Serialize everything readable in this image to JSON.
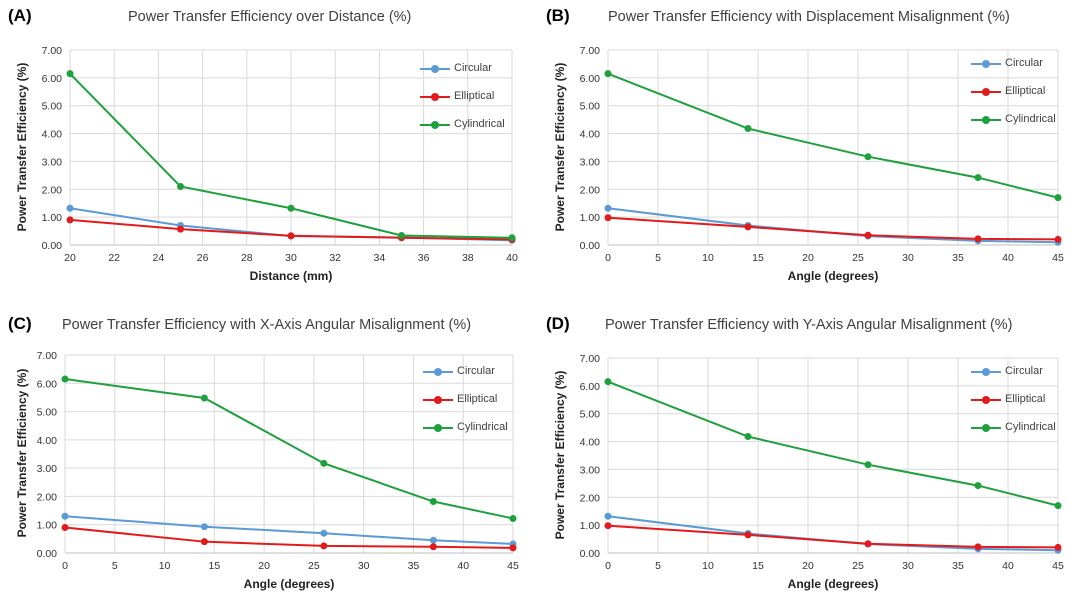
{
  "chart_data": [
    {
      "type": "line",
      "panel_label": "(A)",
      "title": "Power Transfer Efficiency over Distance (%)",
      "xlabel": "Distance (mm)",
      "ylabel": "Power Transfer Efficiency (%)",
      "x": [
        20,
        25,
        30,
        35,
        40
      ],
      "xlim": [
        20,
        40
      ],
      "xticks": [
        20,
        22,
        24,
        26,
        28,
        30,
        32,
        34,
        36,
        38,
        40
      ],
      "ylim": [
        0,
        7
      ],
      "yticks": [
        "0.00",
        "1.00",
        "2.00",
        "3.00",
        "4.00",
        "5.00",
        "6.00",
        "7.00"
      ],
      "grid": true,
      "legend": "top-right",
      "series": [
        {
          "name": "Circular",
          "color": "#5b9bd5",
          "values": [
            1.32,
            0.7,
            0.32,
            0.27,
            0.17
          ]
        },
        {
          "name": "Elliptical",
          "color": "#e31a1c",
          "values": [
            0.9,
            0.57,
            0.33,
            0.26,
            0.2
          ]
        },
        {
          "name": "Cylindrical",
          "color": "#1ea03c",
          "values": [
            6.15,
            2.1,
            1.32,
            0.34,
            0.26
          ]
        }
      ]
    },
    {
      "type": "line",
      "panel_label": "(B)",
      "title": "Power Transfer Efficiency with Displacement Misalignment (%)",
      "xlabel": "Angle (degrees)",
      "ylabel": "Power Transfer Efficiency (%)",
      "x": [
        0,
        14,
        26,
        37,
        45
      ],
      "xlim": [
        0,
        45
      ],
      "xticks": [
        0,
        5,
        10,
        15,
        20,
        25,
        30,
        35,
        40,
        45
      ],
      "ylim": [
        0,
        7
      ],
      "yticks": [
        "0.00",
        "1.00",
        "2.00",
        "3.00",
        "4.00",
        "5.00",
        "6.00",
        "7.00"
      ],
      "grid": true,
      "legend": "top-right",
      "series": [
        {
          "name": "Circular",
          "color": "#5b9bd5",
          "values": [
            1.32,
            0.7,
            0.32,
            0.15,
            0.1
          ]
        },
        {
          "name": "Elliptical",
          "color": "#e31a1c",
          "values": [
            0.98,
            0.65,
            0.35,
            0.22,
            0.2
          ]
        },
        {
          "name": "Cylindrical",
          "color": "#1ea03c",
          "values": [
            6.15,
            4.18,
            3.17,
            2.42,
            1.7
          ]
        }
      ]
    },
    {
      "type": "line",
      "panel_label": "(C)",
      "title": "Power Transfer Efficiency with X-Axis Angular Misalignment (%)",
      "xlabel": "Angle (degrees)",
      "ylabel": "Power Transfer Efficiency (%)",
      "x": [
        0,
        14,
        26,
        37,
        45
      ],
      "xlim": [
        0,
        45
      ],
      "xticks": [
        0,
        5,
        10,
        15,
        20,
        25,
        30,
        35,
        40,
        45
      ],
      "ylim": [
        0,
        7
      ],
      "yticks": [
        "0.00",
        "1.00",
        "2.00",
        "3.00",
        "4.00",
        "5.00",
        "6.00",
        "7.00"
      ],
      "grid": true,
      "legend": "top-right",
      "series": [
        {
          "name": "Circular",
          "color": "#5b9bd5",
          "values": [
            1.3,
            0.93,
            0.7,
            0.45,
            0.32
          ]
        },
        {
          "name": "Elliptical",
          "color": "#e31a1c",
          "values": [
            0.9,
            0.4,
            0.25,
            0.22,
            0.18
          ]
        },
        {
          "name": "Cylindrical",
          "color": "#1ea03c",
          "values": [
            6.15,
            5.48,
            3.17,
            1.82,
            1.22
          ]
        }
      ]
    },
    {
      "type": "line",
      "panel_label": "(D)",
      "title": "Power Transfer Efficiency with Y-Axis Angular  Misalignment (%)",
      "xlabel": "Angle (degrees)",
      "ylabel": "Power Transfer Efficiency (%)",
      "x": [
        0,
        14,
        26,
        37,
        45
      ],
      "xlim": [
        0,
        45
      ],
      "xticks": [
        0,
        5,
        10,
        15,
        20,
        25,
        30,
        35,
        40,
        45
      ],
      "ylim": [
        0,
        7
      ],
      "yticks": [
        "0.00",
        "1.00",
        "2.00",
        "3.00",
        "4.00",
        "5.00",
        "6.00",
        "7.00"
      ],
      "grid": true,
      "legend": "top-right",
      "series": [
        {
          "name": "Circular",
          "color": "#5b9bd5",
          "values": [
            1.32,
            0.7,
            0.32,
            0.15,
            0.1
          ]
        },
        {
          "name": "Elliptical",
          "color": "#e31a1c",
          "values": [
            0.98,
            0.65,
            0.33,
            0.22,
            0.2
          ]
        },
        {
          "name": "Cylindrical",
          "color": "#1ea03c",
          "values": [
            6.15,
            4.18,
            3.17,
            2.42,
            1.7
          ]
        }
      ]
    }
  ]
}
